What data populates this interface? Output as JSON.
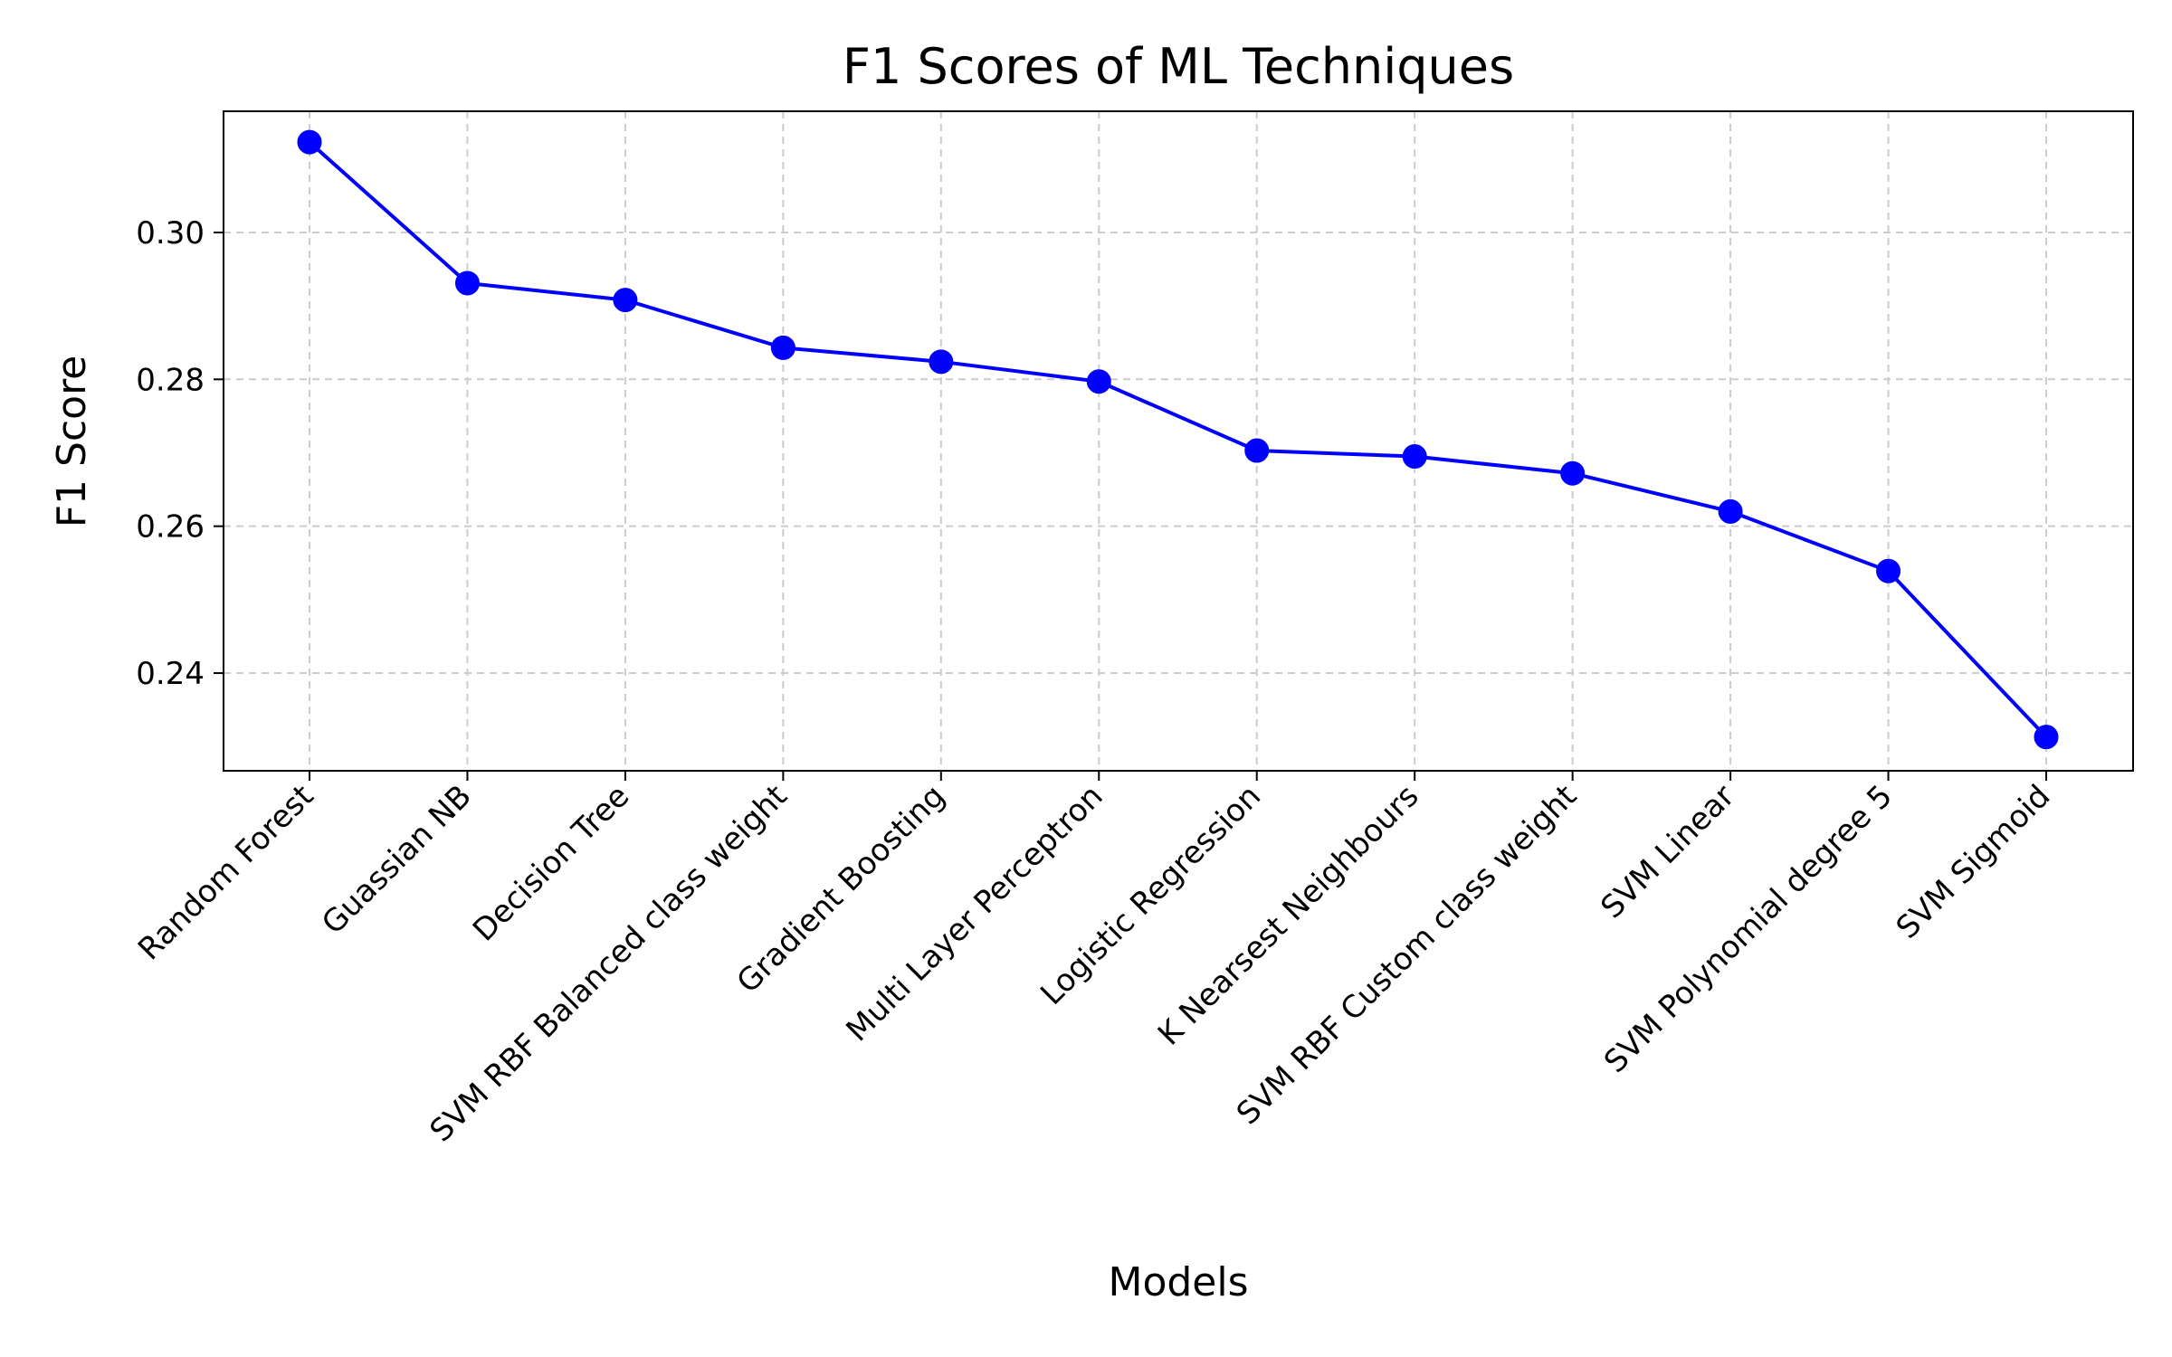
{
  "chart_data": {
    "type": "line",
    "title": "F1 Scores of ML Techniques",
    "xlabel": "Models",
    "ylabel": "F1 Score",
    "categories": [
      "Random Forest",
      "Guassian NB",
      "Decision Tree",
      "SVM RBF Balanced class weight",
      "Gradient Boosting",
      "Multi Layer Perceptron",
      "Logistic Regression",
      "K Nearsest Neighbours",
      "SVM RBF Custom class weight",
      "SVM Linear",
      "SVM Polynomial degree 5",
      "SVM Sigmoid"
    ],
    "values": [
      0.3123,
      0.2931,
      0.2908,
      0.2843,
      0.2824,
      0.2797,
      0.2703,
      0.2695,
      0.2672,
      0.262,
      0.2539,
      0.2313
    ],
    "ylim": [
      0.2267,
      0.3165
    ],
    "yticks": [
      0.24,
      0.26,
      0.28,
      0.3
    ],
    "ytick_labels": [
      "0.24",
      "0.26",
      "0.28",
      "0.30"
    ],
    "grid": true,
    "colors": {
      "series": "#0000ff",
      "grid": "#cccccc",
      "axes": "#000000"
    }
  }
}
